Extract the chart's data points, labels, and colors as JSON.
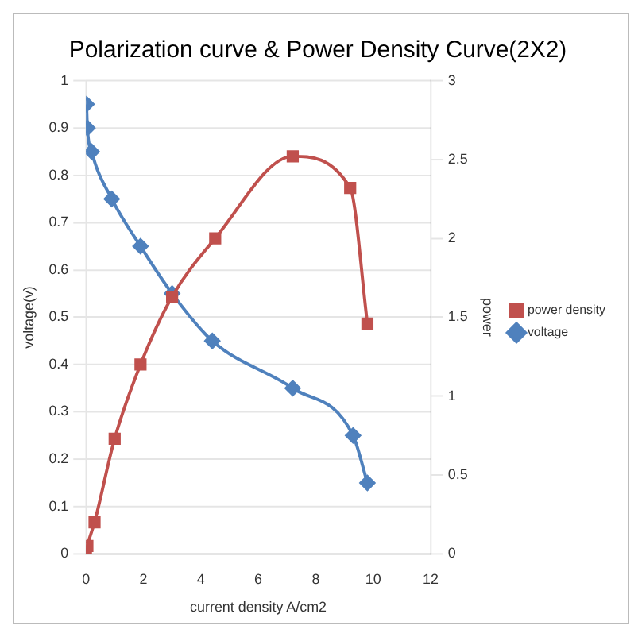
{
  "chart_data": {
    "type": "line",
    "title": "Polarization curve & Power Density Curve(2X2)",
    "xlabel": "current density A/cm2",
    "ylabel": "voltage(v)",
    "y2label": "power",
    "xlim": [
      0,
      12
    ],
    "xticks": [
      0,
      2,
      4,
      6,
      8,
      10,
      12
    ],
    "ylim": [
      0,
      1
    ],
    "yticks": [
      0,
      0.1,
      0.2,
      0.3,
      0.4,
      0.5,
      0.6,
      0.7,
      0.8,
      0.9,
      1
    ],
    "y2lim": [
      0,
      3
    ],
    "y2ticks": [
      0,
      0.5,
      1,
      1.5,
      2,
      2.5,
      3
    ],
    "grid": "y",
    "legend": "right",
    "series": [
      {
        "name": "voltage",
        "color": "#4f81bd",
        "marker": "diamond",
        "x": [
          0.02,
          0.05,
          0.2,
          0.9,
          1.9,
          3,
          4.4,
          7.2,
          9.3,
          9.8
        ],
        "values": [
          0.95,
          0.9,
          0.85,
          0.75,
          0.65,
          0.55,
          0.45,
          0.35,
          0.25,
          0.15
        ]
      },
      {
        "name": "power density",
        "color": "#c0504d",
        "marker": "square",
        "axis": "y2",
        "x": [
          0,
          0.05,
          0.3,
          1,
          1.9,
          3,
          4.5,
          7.2,
          9.2,
          9.8
        ],
        "values": [
          0,
          0.05,
          0.2,
          0.73,
          1.2,
          1.63,
          2,
          2.52,
          2.32,
          1.46
        ]
      }
    ]
  }
}
